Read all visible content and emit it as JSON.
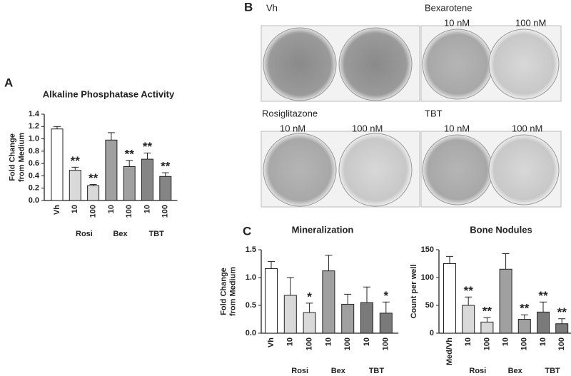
{
  "panel_labels": [
    "A",
    "B",
    "C"
  ],
  "photos": {
    "groups": [
      {
        "label": "Vh"
      },
      {
        "label": "Bexarotene",
        "doses": [
          "10 nM",
          "100 nM"
        ]
      },
      {
        "label": "Rosiglitazone",
        "doses": [
          "10 nM",
          "100 nM"
        ]
      },
      {
        "label": "TBT",
        "doses": [
          "10 nM",
          "100 nM"
        ]
      }
    ]
  },
  "chart_data": [
    {
      "type": "bar",
      "title": "Alkaline Phosphatase Activity",
      "ylabel": [
        "Fold Change",
        "from Medium"
      ],
      "categories": [
        "Vh",
        "10",
        "100",
        "10",
        "100",
        "10",
        "100"
      ],
      "groups": [
        "Rosi",
        "Bex",
        "TBT"
      ],
      "values": [
        1.16,
        0.49,
        0.24,
        0.98,
        0.55,
        0.67,
        0.39
      ],
      "errors": [
        0.04,
        0.05,
        0.02,
        0.12,
        0.1,
        0.1,
        0.06
      ],
      "annotations": [
        null,
        "**",
        "**",
        null,
        "**",
        "**",
        "**"
      ],
      "colors": [
        "#ffffff",
        "#d9d9d9",
        "#d9d9d9",
        "#a0a0a0",
        "#a0a0a0",
        "#858585",
        "#858585"
      ],
      "ylim": [
        0,
        1.4
      ],
      "yticks": [
        {
          "value": 0,
          "label": "0.0"
        },
        0.2,
        0.4,
        0.6,
        0.8,
        {
          "value": 1,
          "label": "1.0"
        },
        1.2,
        1.4
      ]
    },
    {
      "type": "bar",
      "title": "Mineralization",
      "ylabel": [
        "Fold Change",
        "from Medium"
      ],
      "categories": [
        "Vh",
        "10",
        "100",
        "10",
        "100",
        "10",
        "100"
      ],
      "groups": [
        "Rosi",
        "Bex",
        "TBT"
      ],
      "values": [
        1.16,
        0.68,
        0.37,
        1.12,
        0.52,
        0.55,
        0.36
      ],
      "errors": [
        0.13,
        0.32,
        0.17,
        0.28,
        0.18,
        0.28,
        0.2
      ],
      "annotations": [
        null,
        null,
        "*",
        null,
        null,
        null,
        "*"
      ],
      "colors": [
        "#ffffff",
        "#d9d9d9",
        "#d9d9d9",
        "#a0a0a0",
        "#a0a0a0",
        "#7a7a7a",
        "#7a7a7a"
      ],
      "ylim": [
        0,
        1.5
      ],
      "yticks": [
        {
          "value": 0,
          "label": "0.0"
        },
        0.5,
        {
          "value": 1,
          "label": "1.0"
        },
        1.5
      ]
    },
    {
      "type": "bar",
      "title": "Bone Nodules",
      "ylabel": [
        "Count per well"
      ],
      "categories": [
        "Med/Vh",
        "10",
        "100",
        "10",
        "100",
        "10",
        "100"
      ],
      "groups": [
        "Rosi",
        "Bex",
        "TBT"
      ],
      "values": [
        125,
        50,
        20,
        115,
        25,
        38,
        17
      ],
      "errors": [
        13,
        15,
        8,
        28,
        8,
        18,
        9
      ],
      "annotations": [
        null,
        "**",
        "**",
        null,
        "**",
        "**",
        "**"
      ],
      "colors": [
        "#ffffff",
        "#d9d9d9",
        "#d9d9d9",
        "#a0a0a0",
        "#a0a0a0",
        "#7a7a7a",
        "#7a7a7a"
      ],
      "ylim": [
        0,
        150
      ],
      "yticks": [
        0,
        50,
        100,
        150
      ]
    }
  ]
}
